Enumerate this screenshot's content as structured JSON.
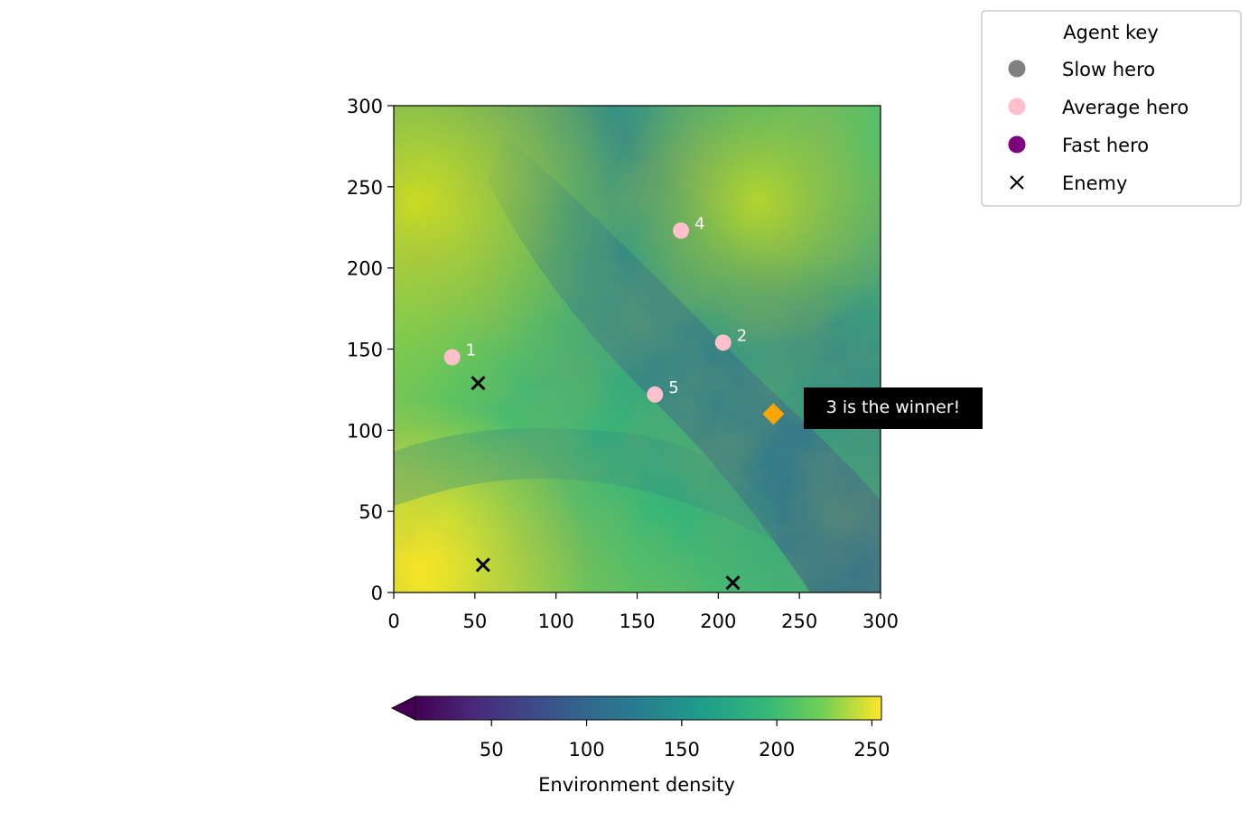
{
  "chart_data": {
    "type": "scatter",
    "title": "",
    "xlabel": "",
    "ylabel": "",
    "xlim": [
      0,
      300
    ],
    "ylim": [
      0,
      300
    ],
    "x_ticks": [
      0,
      50,
      100,
      150,
      200,
      250,
      300
    ],
    "y_ticks": [
      0,
      50,
      100,
      150,
      200,
      250,
      300
    ],
    "background": "heatmap of environment density (viridis colormap)",
    "heroes": [
      {
        "label": "1",
        "x": 36,
        "y": 145,
        "type": "Average hero"
      },
      {
        "label": "2",
        "x": 203,
        "y": 154,
        "type": "Average hero"
      },
      {
        "label": "4",
        "x": 177,
        "y": 223,
        "type": "Average hero"
      },
      {
        "label": "5",
        "x": 161,
        "y": 122,
        "type": "Average hero"
      }
    ],
    "enemies": [
      {
        "x": 52,
        "y": 129
      },
      {
        "x": 55,
        "y": 17
      },
      {
        "x": 209,
        "y": 6
      }
    ],
    "winner": {
      "x": 234,
      "y": 110,
      "color": "#ffa500",
      "annotation": "3 is the winner!"
    },
    "legend": {
      "title": "Agent key",
      "placement": "outside top-right",
      "entries": [
        {
          "label": "Slow hero",
          "marker": "circle",
          "color": "#808080"
        },
        {
          "label": "Average hero",
          "marker": "circle",
          "color": "#ffc0cb"
        },
        {
          "label": "Fast hero",
          "marker": "circle",
          "color": "#800080"
        },
        {
          "label": "Enemy",
          "marker": "x",
          "color": "#000000"
        }
      ]
    },
    "colorbar": {
      "label": "Environment density",
      "range": [
        10,
        255
      ],
      "ticks": [
        50,
        100,
        150,
        200,
        250
      ],
      "colormap": "viridis",
      "extend": "min"
    },
    "colors": {
      "hero": "#ffc0cb",
      "enemy": "#000000",
      "winner": "#ffa500",
      "annotation_bg": "#000000",
      "annotation_text": "#ffffff"
    }
  }
}
